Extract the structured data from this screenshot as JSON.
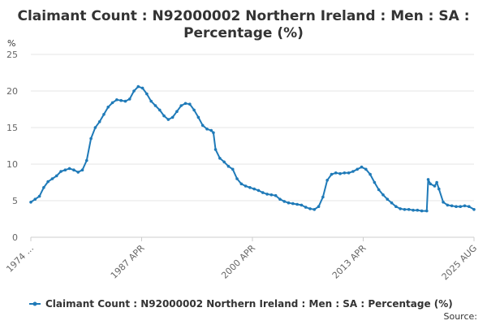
{
  "chart_data": {
    "type": "line",
    "title_lines": [
      "Claimant Count : N92000002 Northern Ireland : Men : SA :",
      "Percentage (%)"
    ],
    "ylabel": "%",
    "ylim": [
      0,
      25
    ],
    "y_ticks": [
      "0",
      "5",
      "10",
      "15",
      "20",
      "25"
    ],
    "grid": true,
    "x_tick_labels": [
      "1974 ...",
      "1987 APR",
      "2000 APR",
      "2013 APR",
      "2025 AUG"
    ],
    "x_range": [
      "1974-01",
      "2025-08"
    ],
    "legend": "bottom",
    "source_label": "Source:",
    "color": "#1f7ab8",
    "series": [
      {
        "name": "Claimant Count : N92000002 Northern Ireland : Men : SA : Percentage (%)",
        "points": [
          [
            "1974-01",
            4.8
          ],
          [
            "1974-07",
            5.2
          ],
          [
            "1975-01",
            5.6
          ],
          [
            "1975-07",
            6.8
          ],
          [
            "1976-01",
            7.6
          ],
          [
            "1976-07",
            8.0
          ],
          [
            "1977-01",
            8.4
          ],
          [
            "1977-07",
            9.0
          ],
          [
            "1978-01",
            9.2
          ],
          [
            "1978-07",
            9.4
          ],
          [
            "1979-01",
            9.2
          ],
          [
            "1979-07",
            8.9
          ],
          [
            "1980-01",
            9.2
          ],
          [
            "1980-07",
            10.5
          ],
          [
            "1981-01",
            13.5
          ],
          [
            "1981-07",
            15.0
          ],
          [
            "1982-01",
            15.8
          ],
          [
            "1982-07",
            16.8
          ],
          [
            "1983-01",
            17.8
          ],
          [
            "1983-07",
            18.4
          ],
          [
            "1984-01",
            18.8
          ],
          [
            "1984-07",
            18.7
          ],
          [
            "1985-01",
            18.6
          ],
          [
            "1985-07",
            18.9
          ],
          [
            "1986-01",
            20.0
          ],
          [
            "1986-07",
            20.6
          ],
          [
            "1987-01",
            20.4
          ],
          [
            "1987-07",
            19.6
          ],
          [
            "1988-01",
            18.6
          ],
          [
            "1988-07",
            18.0
          ],
          [
            "1989-01",
            17.4
          ],
          [
            "1989-07",
            16.6
          ],
          [
            "1990-01",
            16.1
          ],
          [
            "1990-07",
            16.4
          ],
          [
            "1991-01",
            17.2
          ],
          [
            "1991-07",
            18.0
          ],
          [
            "1992-01",
            18.3
          ],
          [
            "1992-07",
            18.2
          ],
          [
            "1993-01",
            17.4
          ],
          [
            "1993-07",
            16.4
          ],
          [
            "1994-01",
            15.3
          ],
          [
            "1994-07",
            14.8
          ],
          [
            "1995-01",
            14.6
          ],
          [
            "1995-04",
            14.3
          ],
          [
            "1995-07",
            12.0
          ],
          [
            "1996-01",
            10.8
          ],
          [
            "1996-07",
            10.3
          ],
          [
            "1997-01",
            9.7
          ],
          [
            "1997-07",
            9.3
          ],
          [
            "1998-01",
            8.0
          ],
          [
            "1998-07",
            7.3
          ],
          [
            "1999-01",
            7.0
          ],
          [
            "1999-07",
            6.8
          ],
          [
            "2000-01",
            6.6
          ],
          [
            "2000-07",
            6.4
          ],
          [
            "2001-01",
            6.1
          ],
          [
            "2001-07",
            5.9
          ],
          [
            "2002-01",
            5.8
          ],
          [
            "2002-07",
            5.7
          ],
          [
            "2003-01",
            5.2
          ],
          [
            "2003-07",
            4.9
          ],
          [
            "2004-01",
            4.7
          ],
          [
            "2004-07",
            4.6
          ],
          [
            "2005-01",
            4.5
          ],
          [
            "2005-07",
            4.4
          ],
          [
            "2006-01",
            4.1
          ],
          [
            "2006-07",
            3.9
          ],
          [
            "2007-01",
            3.8
          ],
          [
            "2007-07",
            4.2
          ],
          [
            "2008-01",
            5.5
          ],
          [
            "2008-07",
            7.8
          ],
          [
            "2009-01",
            8.6
          ],
          [
            "2009-07",
            8.8
          ],
          [
            "2010-01",
            8.7
          ],
          [
            "2010-07",
            8.8
          ],
          [
            "2011-01",
            8.8
          ],
          [
            "2011-07",
            9.0
          ],
          [
            "2012-01",
            9.3
          ],
          [
            "2012-07",
            9.6
          ],
          [
            "2013-01",
            9.3
          ],
          [
            "2013-07",
            8.6
          ],
          [
            "2014-01",
            7.5
          ],
          [
            "2014-07",
            6.5
          ],
          [
            "2015-01",
            5.8
          ],
          [
            "2015-07",
            5.2
          ],
          [
            "2016-01",
            4.7
          ],
          [
            "2016-07",
            4.2
          ],
          [
            "2017-01",
            3.9
          ],
          [
            "2017-07",
            3.8
          ],
          [
            "2018-01",
            3.8
          ],
          [
            "2018-07",
            3.7
          ],
          [
            "2019-01",
            3.7
          ],
          [
            "2019-07",
            3.6
          ],
          [
            "2020-02",
            3.6
          ],
          [
            "2020-04",
            7.9
          ],
          [
            "2020-07",
            7.3
          ],
          [
            "2021-01",
            7.0
          ],
          [
            "2021-04",
            7.5
          ],
          [
            "2021-07",
            6.6
          ],
          [
            "2022-01",
            4.8
          ],
          [
            "2022-07",
            4.4
          ],
          [
            "2023-01",
            4.3
          ],
          [
            "2023-07",
            4.2
          ],
          [
            "2024-01",
            4.2
          ],
          [
            "2024-07",
            4.3
          ],
          [
            "2025-01",
            4.2
          ],
          [
            "2025-08",
            3.8
          ]
        ]
      }
    ]
  }
}
